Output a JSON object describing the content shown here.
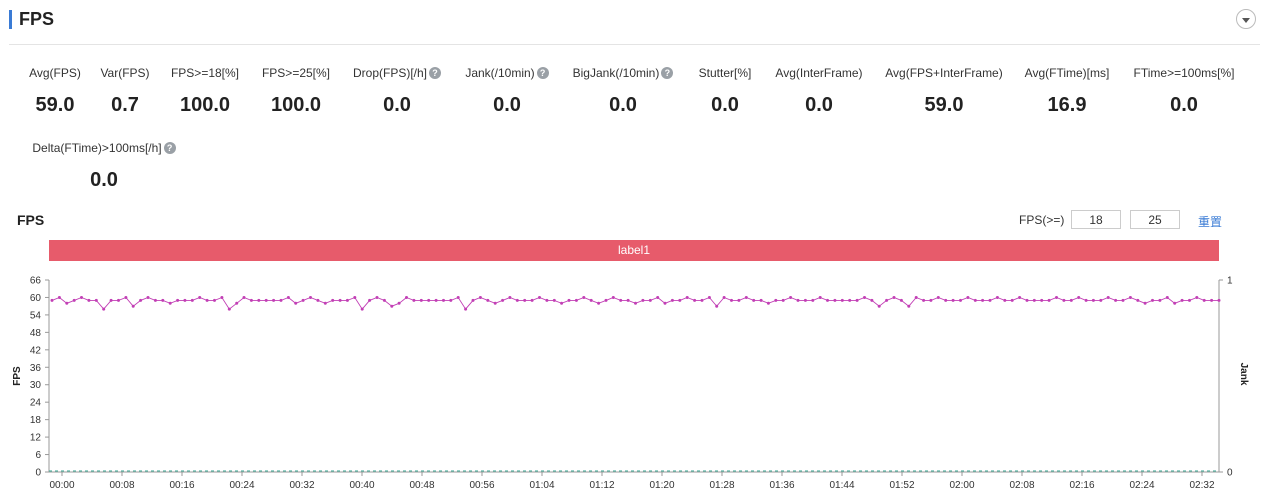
{
  "header": {
    "title": "FPS"
  },
  "metrics": [
    {
      "label": "Avg(FPS)",
      "value": "59.0",
      "help": false
    },
    {
      "label": "Var(FPS)",
      "value": "0.7",
      "help": false
    },
    {
      "label": "FPS>=18[%]",
      "value": "100.0",
      "help": false
    },
    {
      "label": "FPS>=25[%]",
      "value": "100.0",
      "help": false
    },
    {
      "label": "Drop(FPS)[/h]",
      "value": "0.0",
      "help": true
    },
    {
      "label": "Jank(/10min)",
      "value": "0.0",
      "help": true
    },
    {
      "label": "BigJank(/10min)",
      "value": "0.0",
      "help": true
    },
    {
      "label": "Stutter[%]",
      "value": "0.0",
      "help": false
    },
    {
      "label": "Avg(InterFrame)",
      "value": "0.0",
      "help": false
    },
    {
      "label": "Avg(FPS+InterFrame)",
      "value": "59.0",
      "help": false
    },
    {
      "label": "Avg(FTime)[ms]",
      "value": "16.9",
      "help": false
    },
    {
      "label": "FTime>=100ms[%]",
      "value": "0.0",
      "help": false
    },
    {
      "label": "Delta(FTime)>100ms[/h]",
      "value": "0.0",
      "help": true
    }
  ],
  "chart_controls": {
    "title": "FPS",
    "threshold_label": "FPS(>=)",
    "threshold_low": "18",
    "threshold_high": "25",
    "reset_label": "重置"
  },
  "label_band": {
    "text": "label1"
  },
  "colors": {
    "accent": "#3a7bd5",
    "band": "#e75b6b",
    "fps_line": "#c23fb5",
    "jank_line": "#5ab5a3"
  },
  "chart_data": {
    "type": "line",
    "title": "",
    "xlabel": "",
    "ylabel": "FPS",
    "y2label": "Jank",
    "ylim": [
      0,
      66
    ],
    "y2lim": [
      0,
      1
    ],
    "yticks": [
      "0",
      "6",
      "12",
      "18",
      "24",
      "30",
      "36",
      "42",
      "48",
      "54",
      "60",
      "66"
    ],
    "y2ticks": [
      "0",
      "1"
    ],
    "xticks": [
      "00:00",
      "00:08",
      "00:16",
      "00:24",
      "00:32",
      "00:40",
      "00:48",
      "00:56",
      "01:04",
      "01:12",
      "01:20",
      "01:28",
      "01:36",
      "01:44",
      "01:52",
      "02:00",
      "02:08",
      "02:16",
      "02:24",
      "02:32"
    ],
    "x_range_seconds": [
      0,
      156
    ],
    "series": [
      {
        "name": "",
        "axis": "left",
        "values": [
          59,
          60,
          58,
          59,
          60,
          59,
          59,
          56,
          59,
          59,
          60,
          57,
          59,
          60,
          59,
          59,
          58,
          59,
          59,
          59,
          60,
          59,
          59,
          60,
          56,
          58,
          60,
          59,
          59,
          59,
          59,
          59,
          60,
          58,
          59,
          60,
          59,
          58,
          59,
          59,
          59,
          60,
          56,
          59,
          60,
          59,
          57,
          58,
          60,
          59,
          59,
          59,
          59,
          59,
          59,
          60,
          56,
          59,
          60,
          59,
          58,
          59,
          60,
          59,
          59,
          59,
          60,
          59,
          59,
          58,
          59,
          59,
          60,
          59,
          58,
          59,
          60,
          59,
          59,
          58,
          59,
          59,
          60,
          58,
          59,
          59,
          60,
          59,
          59,
          60,
          57,
          60,
          59,
          59,
          60,
          59,
          59,
          58,
          59,
          59,
          60,
          59,
          59,
          59,
          60,
          59,
          59,
          59,
          59,
          59,
          60,
          59,
          57,
          59,
          60,
          59,
          57,
          60,
          59,
          59,
          60,
          59,
          59,
          59,
          60,
          59,
          59,
          59,
          60,
          59,
          59,
          60,
          59,
          59,
          59,
          59,
          60,
          59,
          59,
          60,
          59,
          59,
          59,
          60,
          59,
          59,
          60,
          59,
          58,
          59,
          59,
          60,
          58,
          59,
          59,
          60,
          59,
          59,
          59
        ]
      },
      {
        "name": "",
        "axis": "right",
        "values": [
          0,
          0
        ]
      }
    ]
  }
}
